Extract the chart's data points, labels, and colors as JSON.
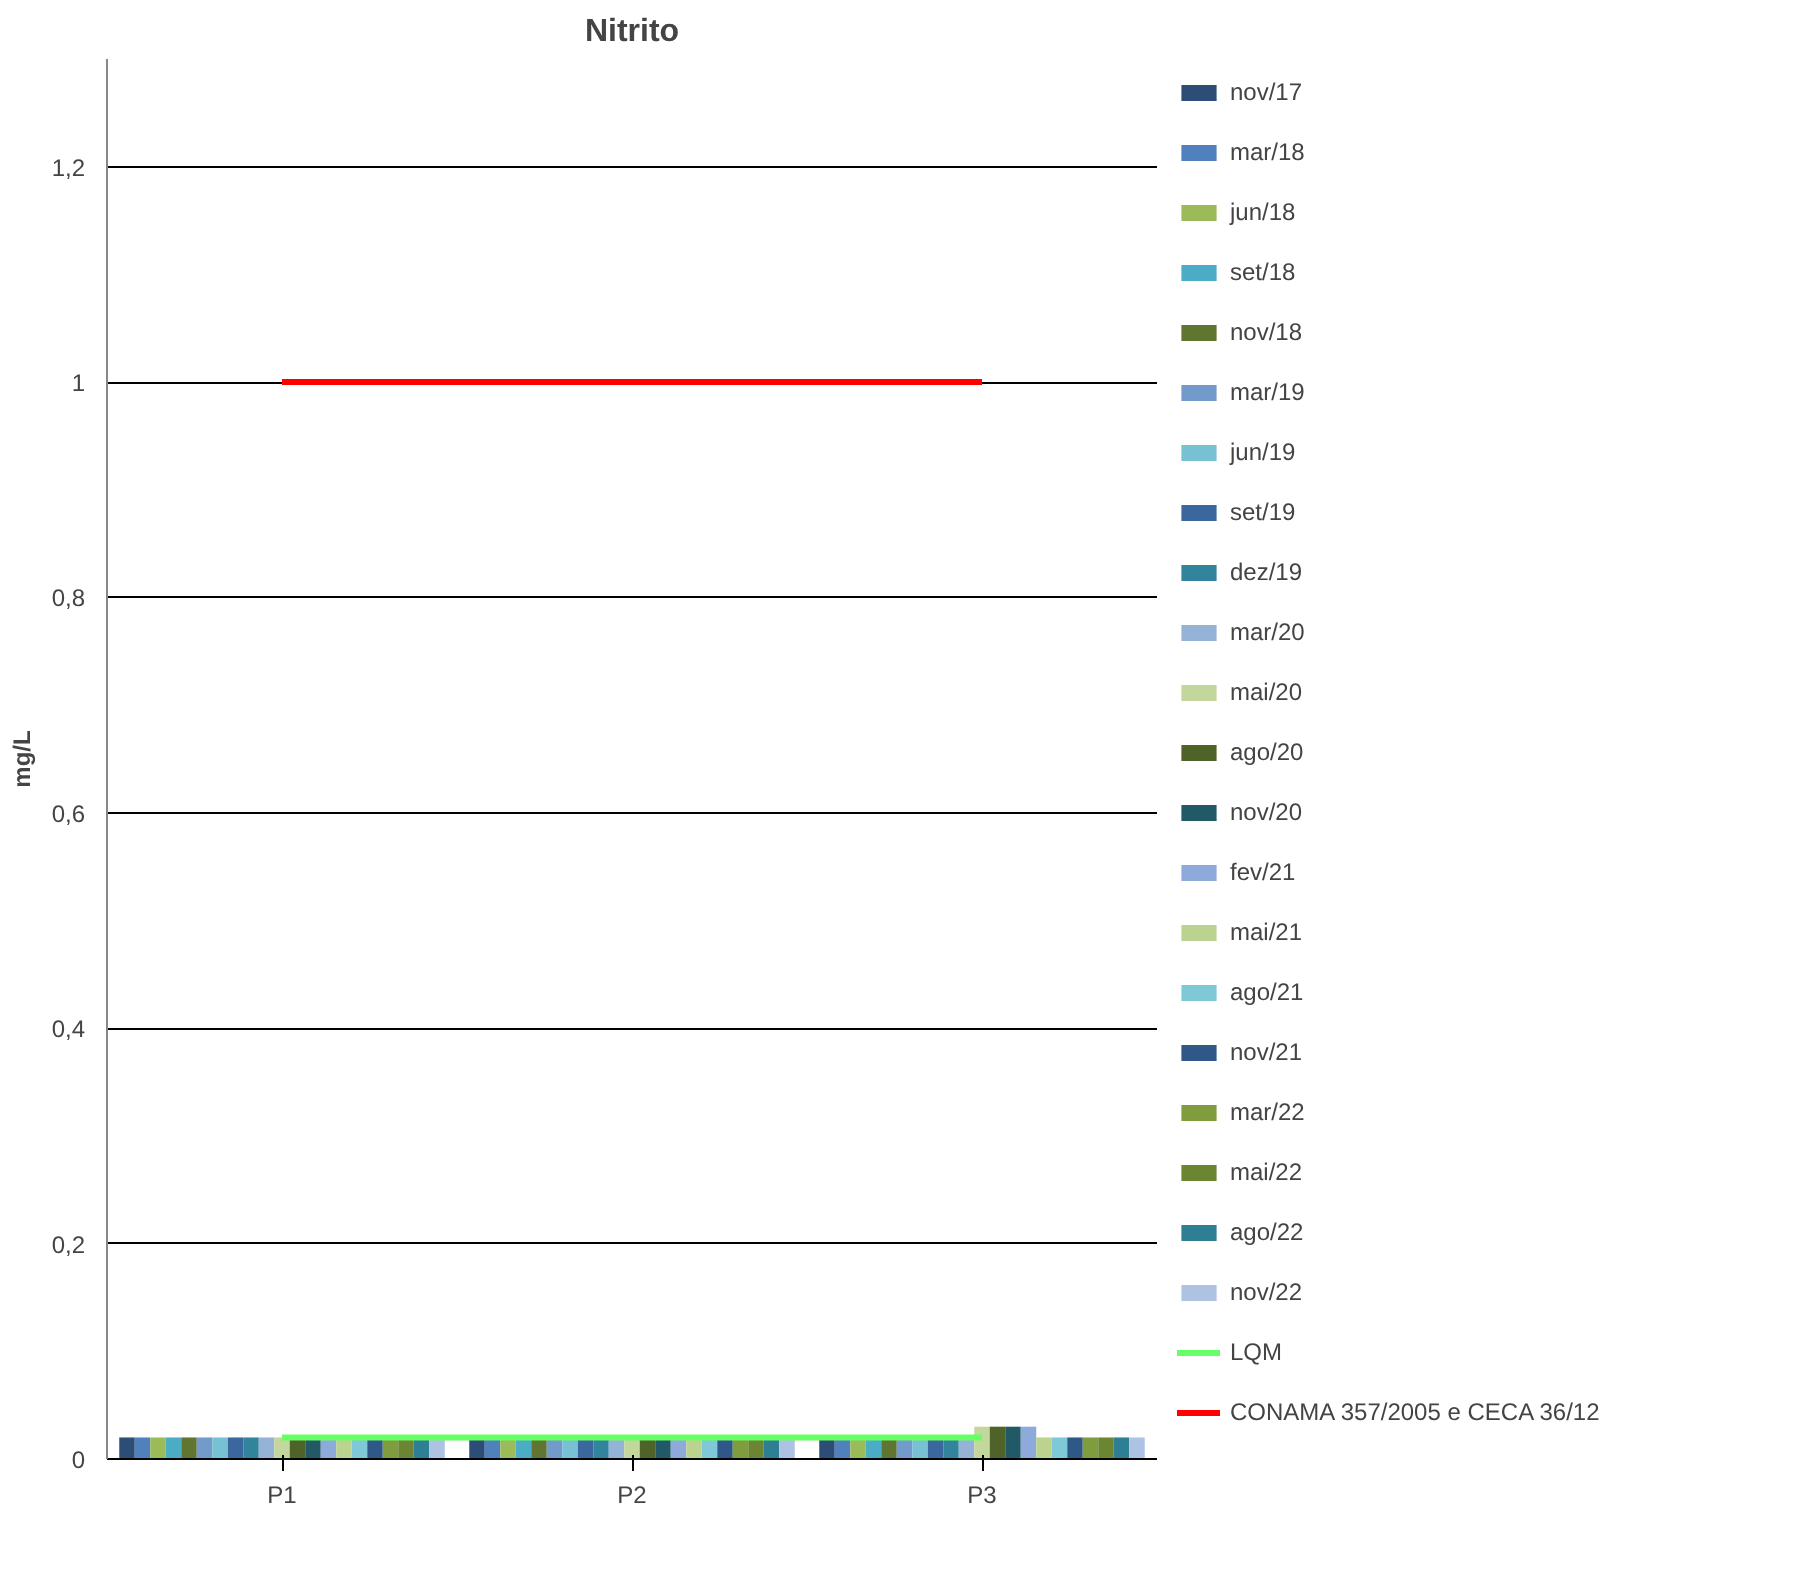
{
  "chart_data": {
    "type": "bar",
    "title": "Nitrito",
    "ylabel": "mg/L",
    "categories": [
      "P1",
      "P2",
      "P3"
    ],
    "ylim": [
      0,
      1.3
    ],
    "yticks": [
      0,
      {
        "value": 0.2,
        "label": "0,2"
      },
      {
        "value": 0.4,
        "label": "0,4"
      },
      {
        "value": 0.6,
        "label": "0,6"
      },
      {
        "value": 0.8,
        "label": "0,8"
      },
      1,
      {
        "value": 1.2,
        "label": "1,2"
      }
    ],
    "grid": "y",
    "legend": "right",
    "series": [
      {
        "name": "nov/17",
        "color": "#2c4d75",
        "values": [
          0.02,
          0.02,
          0.02
        ]
      },
      {
        "name": "mar/18",
        "color": "#4f81bd",
        "values": [
          0.02,
          0.02,
          0.02
        ]
      },
      {
        "name": "jun/18",
        "color": "#9bbb59",
        "values": [
          0.02,
          0.02,
          0.02
        ]
      },
      {
        "name": "set/18",
        "color": "#4bacc6",
        "values": [
          0.02,
          0.02,
          0.02
        ]
      },
      {
        "name": "nov/18",
        "color": "#5f7530",
        "values": [
          0.02,
          0.02,
          0.02
        ]
      },
      {
        "name": "mar/19",
        "color": "#729aca",
        "values": [
          0.02,
          0.02,
          0.02
        ]
      },
      {
        "name": "jun/19",
        "color": "#78c0d4",
        "values": [
          0.02,
          0.02,
          0.02
        ]
      },
      {
        "name": "set/19",
        "color": "#3a679d",
        "values": [
          0.02,
          0.02,
          0.02
        ]
      },
      {
        "name": "dez/19",
        "color": "#31849b",
        "values": [
          0.02,
          0.02,
          0.02
        ]
      },
      {
        "name": "mar/20",
        "color": "#95b3d7",
        "values": [
          0.02,
          0.02,
          0.02
        ]
      },
      {
        "name": "mai/20",
        "color": "#c3d69b",
        "values": [
          0.02,
          0.02,
          0.03
        ]
      },
      {
        "name": "ago/20",
        "color": "#4f6228",
        "values": [
          0.02,
          0.02,
          0.03
        ]
      },
      {
        "name": "nov/20",
        "color": "#215967",
        "values": [
          0.02,
          0.02,
          0.03
        ]
      },
      {
        "name": "fev/21",
        "color": "#8eaadb",
        "values": [
          0.02,
          0.02,
          0.03
        ]
      },
      {
        "name": "mai/21",
        "color": "#bcd38f",
        "values": [
          0.02,
          0.02,
          0.02
        ]
      },
      {
        "name": "ago/21",
        "color": "#7fc8d8",
        "values": [
          0.02,
          0.02,
          0.02
        ]
      },
      {
        "name": "nov/21",
        "color": "#2f5889",
        "values": [
          0.02,
          0.02,
          0.02
        ]
      },
      {
        "name": "mar/22",
        "color": "#7f9d3c",
        "values": [
          0.02,
          0.02,
          0.02
        ]
      },
      {
        "name": "mai/22",
        "color": "#6b8532",
        "values": [
          0.02,
          0.02,
          0.02
        ]
      },
      {
        "name": "ago/22",
        "color": "#2e7f93",
        "values": [
          0.02,
          0.02,
          0.02
        ]
      },
      {
        "name": "nov/22",
        "color": "#aec3e3",
        "values": [
          0.02,
          0.02,
          0.02
        ]
      },
      {
        "name": "LQM",
        "type": "line",
        "color": "#66ff66",
        "values": [
          0.02,
          0.02,
          0.02
        ]
      },
      {
        "name": "CONAMA 357/2005 e CECA 36/12",
        "type": "line",
        "color": "#ff0000",
        "values": [
          1,
          1,
          1
        ]
      }
    ]
  }
}
